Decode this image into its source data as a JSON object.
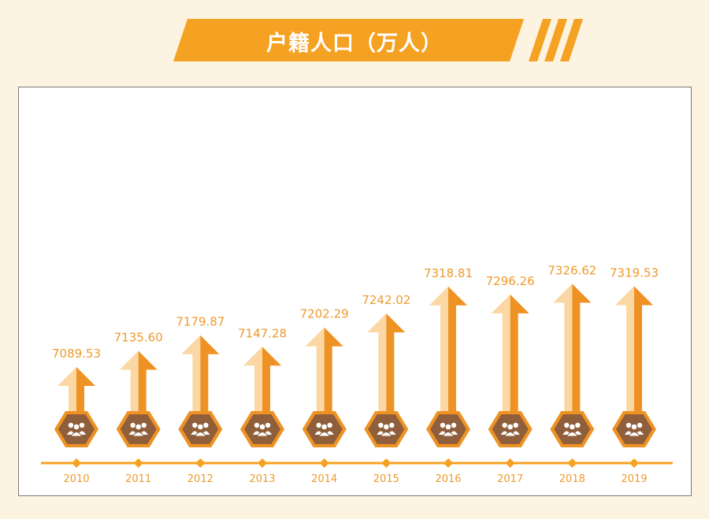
{
  "title": "户籍人口（万人）",
  "colors": {
    "accent": "#f5a121",
    "dark_orange": "#ee9224",
    "light_orange": "#fbd7a3",
    "hexagon": "#8f5e3a",
    "label": "#ee9a2c",
    "background": "#fcf3e0"
  },
  "icons": {
    "badge": "people-icon"
  },
  "chart_data": {
    "type": "bar",
    "categories": [
      "2010",
      "2011",
      "2012",
      "2013",
      "2014",
      "2015",
      "2016",
      "2017",
      "2018",
      "2019"
    ],
    "values": [
      7089.53,
      7135.6,
      7179.87,
      7147.28,
      7202.29,
      7242.02,
      7318.81,
      7296.26,
      7326.62,
      7319.53
    ],
    "value_labels": [
      "7089.53",
      "7135.60",
      "7179.87",
      "7147.28",
      "7202.29",
      "7242.02",
      "7318.81",
      "7296.26",
      "7326.62",
      "7319.53"
    ],
    "title": "户籍人口（万人）",
    "xlabel": "",
    "ylabel": "",
    "grid": false,
    "legend": "none"
  }
}
